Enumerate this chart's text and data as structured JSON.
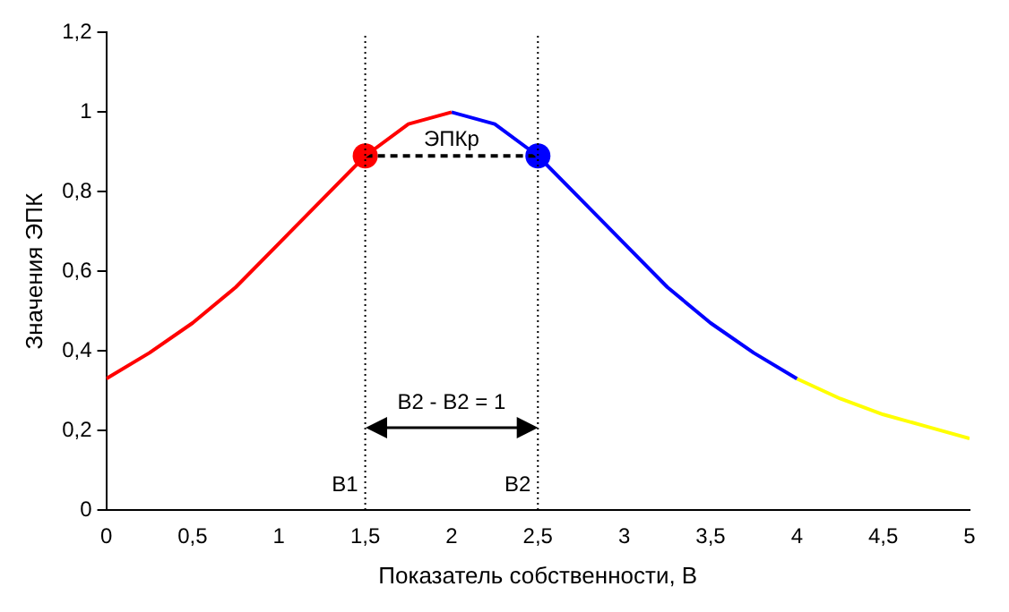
{
  "chart_data": {
    "type": "line",
    "xlabel": "Показатель собственности, В",
    "ylabel": "Значения ЭПК",
    "xlim": [
      0,
      5
    ],
    "xticks": [
      0,
      {
        "value": 0.5,
        "label": "0,5"
      },
      1,
      {
        "value": 1.5,
        "label": "1,5"
      },
      2,
      {
        "value": 2.5,
        "label": "2,5"
      },
      3,
      {
        "value": 3.5,
        "label": "3,5"
      },
      4,
      {
        "value": 4.5,
        "label": "4,5"
      },
      5
    ],
    "ylim": [
      0,
      1.2
    ],
    "yticks": [
      0,
      {
        "value": 0.2,
        "label": "0,2"
      },
      {
        "value": 0.4,
        "label": "0,4"
      },
      {
        "value": 0.6,
        "label": "0,6"
      },
      {
        "value": 0.8,
        "label": "0,8"
      },
      1,
      {
        "value": 1.2,
        "label": "1,2"
      }
    ],
    "grid": false,
    "legend": false,
    "marker": "none",
    "series": [
      {
        "color": "#ff0000",
        "x": [
          0,
          0.25,
          0.5,
          0.75,
          1,
          1.25,
          1.5,
          1.75,
          2
        ],
        "values": [
          0.33,
          0.395,
          0.47,
          0.56,
          0.67,
          0.78,
          0.89,
          0.97,
          1
        ]
      },
      {
        "color": "#0000ff",
        "x": [
          2,
          2.25,
          2.5,
          2.75,
          3,
          3.25,
          3.5,
          3.75,
          4
        ],
        "values": [
          1,
          0.97,
          0.89,
          0.78,
          0.67,
          0.56,
          0.47,
          0.395,
          0.33
        ]
      },
      {
        "color": "#ffff00",
        "x": [
          4,
          4.25,
          4.5,
          4.75,
          5
        ],
        "values": [
          0.33,
          0.28,
          0.24,
          0.21,
          0.18
        ]
      },
      {
        "color": "#000000",
        "line_style": "dashed",
        "x": [
          1.5,
          2.5
        ],
        "values": [
          0.89,
          0.89
        ]
      },
      {
        "type": "scatter",
        "marker": "circle",
        "color": "#ff0000",
        "x": [
          1.5
        ],
        "values": [
          0.89
        ]
      },
      {
        "type": "scatter",
        "marker": "circle",
        "color": "#0000ff",
        "x": [
          2.5
        ],
        "values": [
          0.89
        ]
      }
    ],
    "ref_lines": [
      {
        "axis": "x",
        "value": 1.5,
        "label": "В1",
        "line_style": "dotted",
        "color": "#000000"
      },
      {
        "axis": "x",
        "value": 2.5,
        "label": "В2",
        "line_style": "dotted",
        "color": "#000000"
      }
    ],
    "annotations": [
      {
        "text": "ЭПКр",
        "x": 2,
        "y": 0.89
      },
      "В2 - В2 = 1"
    ]
  }
}
